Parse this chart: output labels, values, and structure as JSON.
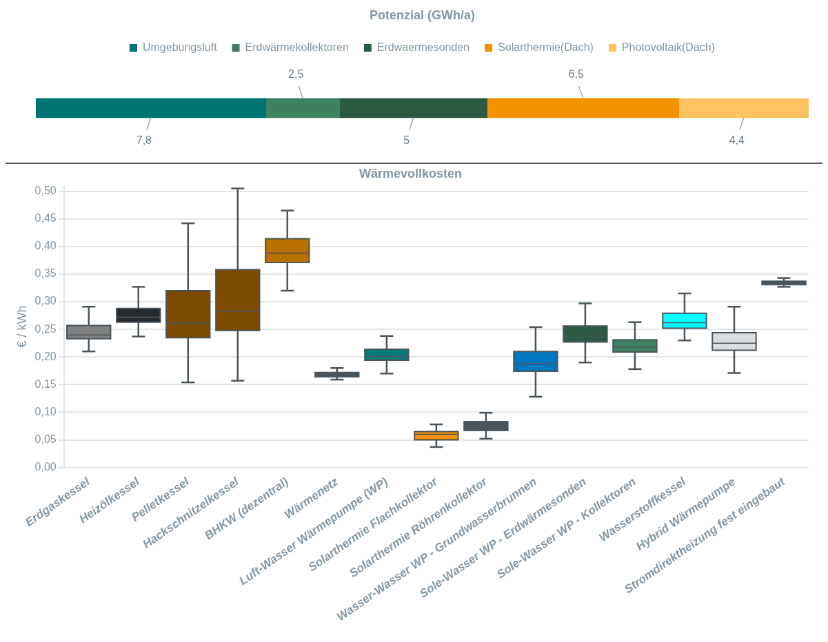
{
  "chart_data": [
    {
      "type": "bar",
      "title": "Potenzial (GWh/a)",
      "orientation": "horizontal",
      "stacked": true,
      "categories": [
        null
      ],
      "legend": "top",
      "tick_labels": false,
      "grid": false,
      "series": [
        {
          "name": "Umgebungsluft",
          "color": "#00756f",
          "values": [
            7.8
          ],
          "value_labels": [
            "7,8"
          ]
        },
        {
          "name": "Erdwärmekollektoren",
          "color": "#3f8060",
          "values": [
            2.5
          ],
          "value_labels": [
            "2,5"
          ]
        },
        {
          "name": "Erdwaermesonden",
          "color": "#2d5842",
          "values": [
            5
          ],
          "value_labels": [
            "5"
          ]
        },
        {
          "name": "Solarthermie(Dach)",
          "color": "#f39200",
          "values": [
            6.5
          ],
          "value_labels": [
            "6,5"
          ]
        },
        {
          "name": "Photovoltaik(Dach)",
          "color": "#fec262",
          "values": [
            4.4
          ],
          "value_labels": [
            "4,4"
          ]
        }
      ]
    },
    {
      "type": "box",
      "title": "Wärmevollkosten",
      "ylabel": "€ / kWh",
      "grid": "y",
      "ylim": [
        0,
        0.51
      ],
      "yticks": [
        {
          "value": 0,
          "label": "0,00"
        },
        {
          "value": 0.05,
          "label": "0,05"
        },
        {
          "value": 0.1,
          "label": "0,10"
        },
        {
          "value": 0.15,
          "label": "0,15"
        },
        {
          "value": 0.2,
          "label": "0,20"
        },
        {
          "value": 0.25,
          "label": "0,25"
        },
        {
          "value": 0.3,
          "label": "0,30"
        },
        {
          "value": 0.35,
          "label": "0,35"
        },
        {
          "value": 0.4,
          "label": "0,40"
        },
        {
          "value": 0.45,
          "label": "0,45"
        },
        {
          "value": 0.5,
          "label": "0,50"
        }
      ],
      "categories": [
        "Erdgaskessel",
        "Heizölkessel",
        "Pelletkessel",
        "Hackschnitzelkessel",
        "BHKW (dezentral)",
        "Wärmenetz",
        "Luft-Wasser Wärmepumpe (WP)",
        "Solarthermie Flachkollektor",
        "Solarthermie Röhrenkollektor",
        "Wasser-Wasser WP - Grundwasserbrunnen",
        "Sole-Wasser WP - Erdwärmesonden",
        "Sole-Wasser WP - Kollektoren",
        "Wasserstoffkessel",
        "Hybrid Wärmepumpe",
        "Stromdirektheizung fest eingebaut"
      ],
      "colors": [
        "#808080",
        "#262b30",
        "#7b4a00",
        "#7b4a00",
        "#b87000",
        "#4a545c",
        "#007a78",
        "#f39200",
        "#4a545c",
        "#0078c0",
        "#2d5a42",
        "#3f8060",
        "#00ffff",
        "#d9dde0",
        "#4a545c"
      ],
      "boxes": [
        {
          "low": 0.21,
          "q1": 0.233,
          "median": 0.24,
          "q3": 0.257,
          "high": 0.291
        },
        {
          "low": 0.237,
          "q1": 0.263,
          "median": 0.272,
          "q3": 0.288,
          "high": 0.327
        },
        {
          "low": 0.154,
          "q1": 0.235,
          "median": 0.261,
          "q3": 0.32,
          "high": 0.442
        },
        {
          "low": 0.157,
          "q1": 0.248,
          "median": 0.283,
          "q3": 0.358,
          "high": 0.505
        },
        {
          "low": 0.32,
          "q1": 0.371,
          "median": 0.388,
          "q3": 0.414,
          "high": 0.465
        },
        {
          "low": 0.159,
          "q1": 0.164,
          "median": 0.168,
          "q3": 0.172,
          "high": 0.18
        },
        {
          "low": 0.17,
          "q1": 0.194,
          "median": 0.201,
          "q3": 0.214,
          "high": 0.238
        },
        {
          "low": 0.037,
          "q1": 0.05,
          "median": 0.06,
          "q3": 0.065,
          "high": 0.078
        },
        {
          "low": 0.052,
          "q1": 0.067,
          "median": 0.078,
          "q3": 0.083,
          "high": 0.099
        },
        {
          "low": 0.128,
          "q1": 0.174,
          "median": 0.188,
          "q3": 0.21,
          "high": 0.254
        },
        {
          "low": 0.19,
          "q1": 0.227,
          "median": 0.238,
          "q3": 0.256,
          "high": 0.297
        },
        {
          "low": 0.178,
          "q1": 0.209,
          "median": 0.218,
          "q3": 0.231,
          "high": 0.263
        },
        {
          "low": 0.23,
          "q1": 0.252,
          "median": 0.262,
          "q3": 0.279,
          "high": 0.315
        },
        {
          "low": 0.171,
          "q1": 0.212,
          "median": 0.225,
          "q3": 0.244,
          "high": 0.291
        },
        {
          "low": 0.327,
          "q1": 0.331,
          "median": 0.335,
          "q3": 0.337,
          "high": 0.343
        }
      ]
    }
  ]
}
